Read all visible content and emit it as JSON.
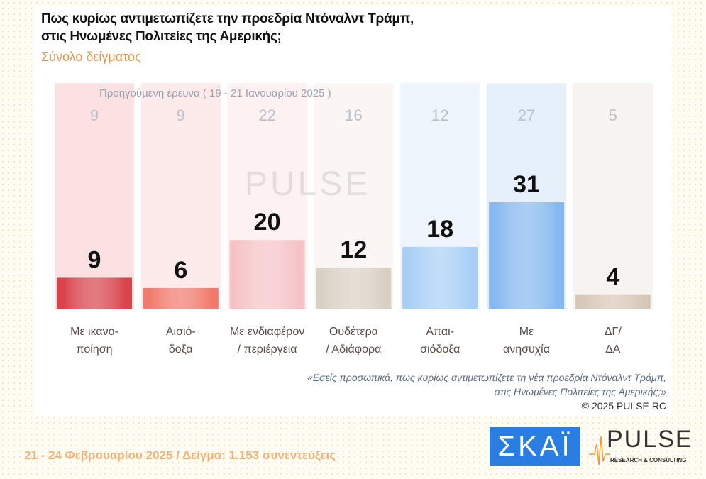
{
  "header": {
    "title_line1": "Πως κυρίως αντιμετωπίζετε την προεδρία Ντόναλντ Τράμπ,",
    "title_line2": "στις Ηνωμένες Πολιτείες της Αμερικής;",
    "subtitle": "Σύνολο δείγματος"
  },
  "chart_data": {
    "type": "bar",
    "previous_label": "Προηγούμενη έρευνα ( 19 - 21 Ιανουαρίου 2025 )",
    "categories": [
      [
        "Με ικανο-",
        "ποίηση"
      ],
      [
        "Αισιό-",
        "δοξα"
      ],
      [
        "Με ενδιαφέρον",
        "/ περιέργεια"
      ],
      [
        "Ουδέτερα",
        "/ Αδιάφορα"
      ],
      [
        "Απαι-",
        "σιόδοξα"
      ],
      [
        "Με",
        "ανησυχία"
      ],
      [
        "ΔΓ/",
        "ΔΑ"
      ]
    ],
    "series": [
      {
        "name": "current",
        "values": [
          9,
          6,
          20,
          12,
          18,
          31,
          4
        ]
      },
      {
        "name": "previous",
        "values": [
          9,
          9,
          22,
          16,
          12,
          27,
          5
        ]
      }
    ],
    "colors": [
      "#d8434c",
      "#f07a6c",
      "#f5c3c6",
      "#d9d0c4",
      "#a7cff6",
      "#86b9ef",
      "#d7c7b6"
    ],
    "bg_colors": [
      "#fbe1e1",
      "#fdeaea",
      "#fdf1f1",
      "#fbf6f4",
      "#eef5fc",
      "#e6f0fb",
      "#f6f3f0"
    ],
    "ylim": [
      0,
      31
    ]
  },
  "watermark": "PULSE",
  "note": {
    "line1": "«Εσείς προσωπικά, πως κυρίως αντιμετωπίζετε τη νέα προεδρία Ντόναλντ Τράμπ,",
    "line2": "στις Ηνωμένες Πολιτείες της Αμερικής;»",
    "copyright": "©  2025  PULSE RC"
  },
  "footer": "21 - 24 Φεβρουαρίου 2025  /  Δείγμα:  1.153 συνεντεύξεις",
  "logos": {
    "skai": "ΣΚΑΪ",
    "pulse": "PULSE",
    "pulse_sub": "RESEARCH & CONSULTING"
  }
}
